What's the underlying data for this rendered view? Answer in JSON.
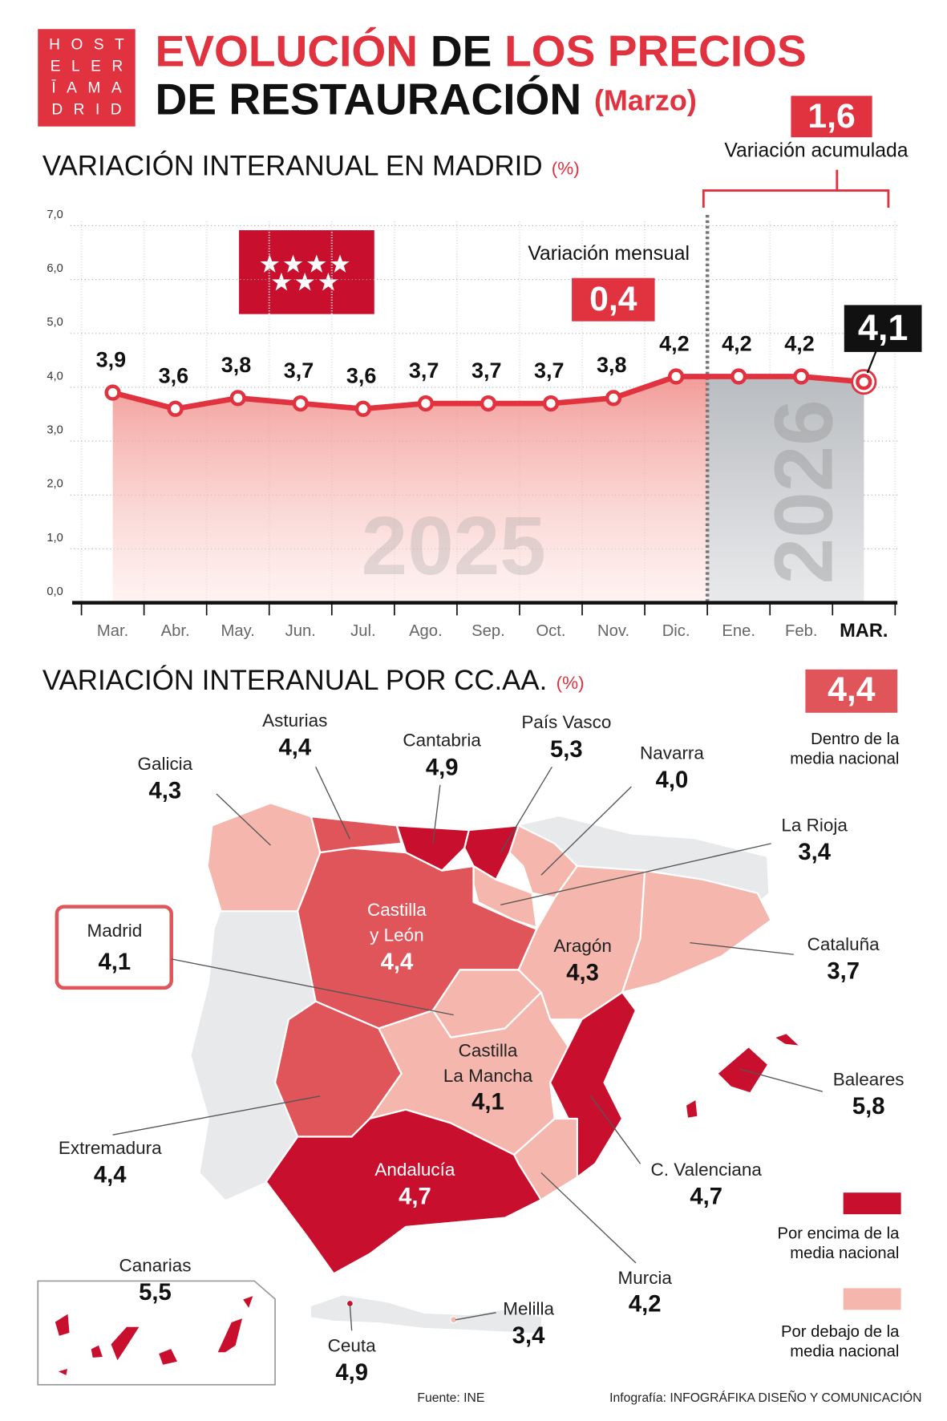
{
  "header": {
    "logo": [
      "HOST",
      "ELER",
      "ĪAMA",
      "DRID"
    ],
    "title": [
      [
        {
          "text": "EVOLUCIÓN",
          "color": "#e0323f"
        },
        {
          "text": "DE",
          "color": "#111111"
        },
        {
          "text": "LOS PRECIOS",
          "color": "#e0323f"
        }
      ],
      [
        {
          "text": "DE RESTAURACIÓN",
          "color": "#111111"
        },
        {
          "text": "(Marzo)",
          "color": "#e0323f"
        }
      ]
    ]
  },
  "chart_data": [
    {
      "type": "line",
      "title": "VARIACIÓN INTERANUAL EN MADRID",
      "unit": "(%)",
      "categories": [
        "Mar.",
        "Abr.",
        "May.",
        "Jun.",
        "Jul.",
        "Ago.",
        "Sep.",
        "Oct.",
        "Nov.",
        "Dic.",
        "Ene.",
        "Feb.",
        "MAR."
      ],
      "values": [
        3.9,
        3.6,
        3.8,
        3.7,
        3.6,
        3.7,
        3.7,
        3.7,
        3.8,
        4.2,
        4.2,
        4.2,
        4.1
      ],
      "value_labels": [
        "3,9",
        "3,6",
        "3,8",
        "3,7",
        "3,6",
        "3,7",
        "3,7",
        "3,7",
        "3,8",
        "4,2",
        "4,2",
        "4,2",
        "4,1"
      ],
      "color": "#e0323f",
      "ylim": [
        0,
        7
      ],
      "yticks": [
        {
          "value": 0,
          "label": "0,0"
        },
        {
          "value": 1,
          "label": "1,0"
        },
        {
          "value": 2,
          "label": "2,0"
        },
        {
          "value": 3,
          "label": "3,0"
        },
        {
          "value": 4,
          "label": "4,0"
        },
        {
          "value": 5,
          "label": "5,0"
        },
        {
          "value": 6,
          "label": "6,0"
        },
        {
          "value": 7,
          "label": "7,0"
        }
      ],
      "grid": true,
      "period_labels": [
        "2025",
        "2026"
      ],
      "monthly_variation": {
        "text": "Variación mensual",
        "value": "0,4"
      },
      "accumulated_variation": {
        "text": "Variación acumulada",
        "value": "1,6"
      }
    },
    {
      "type": "map",
      "title": "VARIACIÓN INTERANUAL POR CC.AA.",
      "unit": "(%)",
      "regions": [
        {
          "name": [
            "Galicia"
          ],
          "value": 4.3,
          "value_label": "4,3",
          "color": "#f5b7ad"
        },
        {
          "name": [
            "Asturias"
          ],
          "value": 4.4,
          "value_label": "4,4",
          "color": "#e0555a"
        },
        {
          "name": [
            "Cantabria"
          ],
          "value": 4.9,
          "value_label": "4,9",
          "color": "#c8102e"
        },
        {
          "name": [
            "País Vasco"
          ],
          "value": 5.3,
          "value_label": "5,3",
          "color": "#c8102e"
        },
        {
          "name": [
            "Navarra"
          ],
          "value": 4.0,
          "value_label": "4,0",
          "color": "#f5b7ad"
        },
        {
          "name": [
            "La Rioja"
          ],
          "value": 3.4,
          "value_label": "3,4",
          "color": "#f5b7ad"
        },
        {
          "name": [
            "Castilla",
            "y León"
          ],
          "value": 4.4,
          "value_label": "4,4",
          "color": "#e0555a"
        },
        {
          "name": [
            "Madrid"
          ],
          "value": 4.1,
          "value_label": "4,1",
          "color": "#f5b7ad"
        },
        {
          "name": [
            "Aragón"
          ],
          "value": 4.3,
          "value_label": "4,3",
          "color": "#f5b7ad"
        },
        {
          "name": [
            "Cataluña"
          ],
          "value": 3.7,
          "value_label": "3,7",
          "color": "#f5b7ad"
        },
        {
          "name": [
            "Castilla",
            "La Mancha"
          ],
          "value": 4.1,
          "value_label": "4,1",
          "color": "#f5b7ad"
        },
        {
          "name": [
            "Extremadura"
          ],
          "value": 4.4,
          "value_label": "4,4",
          "color": "#e0555a"
        },
        {
          "name": [
            "Andalucía"
          ],
          "value": 4.7,
          "value_label": "4,7",
          "color": "#c8102e"
        },
        {
          "name": [
            "C. Valenciana"
          ],
          "value": 4.7,
          "value_label": "4,7",
          "color": "#c8102e"
        },
        {
          "name": [
            "Murcia"
          ],
          "value": 4.2,
          "value_label": "4,2",
          "color": "#f5b7ad"
        },
        {
          "name": [
            "Baleares"
          ],
          "value": 5.8,
          "value_label": "5,8",
          "color": "#c8102e"
        },
        {
          "name": [
            "Canarias"
          ],
          "value": 5.5,
          "value_label": "5,5",
          "color": "#c8102e"
        },
        {
          "name": [
            "Ceuta"
          ],
          "value": 4.9,
          "value_label": "4,9",
          "color": "#c8102e"
        },
        {
          "name": [
            "Melilla"
          ],
          "value": 3.4,
          "value_label": "3,4",
          "color": "#f5b7ad"
        }
      ],
      "legend": [
        {
          "value_label": "4,4",
          "text": [
            "Dentro de la",
            "media nacional"
          ],
          "color": "#e0555a"
        },
        {
          "text": [
            "Por encima de la",
            "media nacional"
          ],
          "color": "#c8102e"
        },
        {
          "text": [
            "Por debajo de la",
            "media nacional"
          ],
          "color": "#f5b7ad"
        }
      ]
    }
  ],
  "footer": {
    "source": "Fuente: INE",
    "credit": "Infografía: INFOGRÁFIKA DISEÑO Y COMUNICACIÓN"
  }
}
